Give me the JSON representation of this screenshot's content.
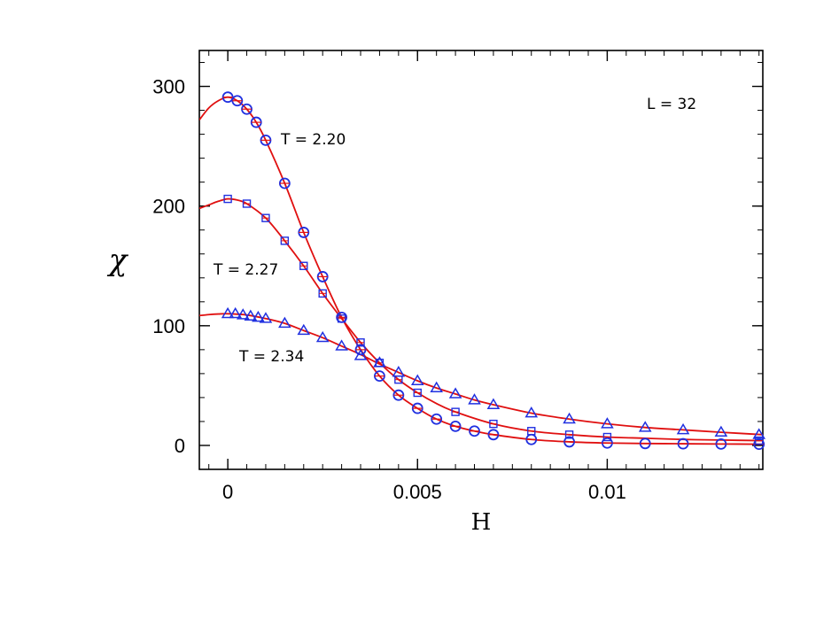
{
  "chart_data": {
    "type": "scatter",
    "xlabel": "H",
    "ylabel": "χ",
    "xlim": [
      -0.00075,
      0.0141
    ],
    "ylim": [
      -20,
      330
    ],
    "x_ticks": [
      0,
      0.005,
      0.01
    ],
    "x_tick_labels": [
      "0",
      "0.005",
      "0.01"
    ],
    "y_ticks": [
      0,
      100,
      200,
      300
    ],
    "y_tick_labels": [
      "0",
      "100",
      "200",
      "300"
    ],
    "grid": false,
    "legend": "none",
    "annotations": [
      {
        "text": "L = 32",
        "x": 0.0111,
        "y": 280
      },
      {
        "text": "T = 2.20",
        "x": 0.0014,
        "y": 252
      },
      {
        "text": "T = 2.27",
        "x": -0.0004,
        "y": 145
      },
      {
        "text": "T = 2.34",
        "x": 0.0003,
        "y": 68
      }
    ],
    "series": [
      {
        "label": "T = 2.20",
        "marker": "circle",
        "color": "#2030e0",
        "curve_color": "#e01010",
        "points": [
          [
            0,
            291
          ],
          [
            0.00025,
            288
          ],
          [
            0.0005,
            281
          ],
          [
            0.00075,
            270
          ],
          [
            0.001,
            255
          ],
          [
            0.0015,
            219
          ],
          [
            0.002,
            178
          ],
          [
            0.0025,
            141
          ],
          [
            0.003,
            107
          ],
          [
            0.0035,
            80
          ],
          [
            0.004,
            58
          ],
          [
            0.0045,
            42
          ],
          [
            0.005,
            31
          ],
          [
            0.0055,
            22
          ],
          [
            0.006,
            16
          ],
          [
            0.0065,
            12
          ],
          [
            0.007,
            9
          ],
          [
            0.008,
            5
          ],
          [
            0.009,
            3
          ],
          [
            0.01,
            2
          ],
          [
            0.011,
            1.6
          ],
          [
            0.012,
            1.4
          ],
          [
            0.013,
            1.2
          ],
          [
            0.014,
            1
          ]
        ],
        "curve": [
          [
            -0.00075,
            272
          ],
          [
            -0.0005,
            282
          ],
          [
            -0.00025,
            288
          ],
          [
            0,
            291
          ],
          [
            0.00025,
            288
          ],
          [
            0.0005,
            281
          ],
          [
            0.00075,
            270
          ],
          [
            0.001,
            255
          ],
          [
            0.0015,
            219
          ],
          [
            0.002,
            178
          ],
          [
            0.0025,
            141
          ],
          [
            0.003,
            107
          ],
          [
            0.0035,
            80
          ],
          [
            0.004,
            58
          ],
          [
            0.0045,
            42
          ],
          [
            0.005,
            31
          ],
          [
            0.0055,
            22
          ],
          [
            0.006,
            16
          ],
          [
            0.0065,
            12
          ],
          [
            0.007,
            9
          ],
          [
            0.008,
            5
          ],
          [
            0.009,
            3
          ],
          [
            0.01,
            2
          ],
          [
            0.011,
            1.6
          ],
          [
            0.012,
            1.4
          ],
          [
            0.013,
            1.2
          ],
          [
            0.0141,
            1
          ]
        ]
      },
      {
        "label": "T = 2.27",
        "marker": "square",
        "color": "#2030e0",
        "curve_color": "#e01010",
        "points": [
          [
            0,
            206
          ],
          [
            0.0005,
            202
          ],
          [
            0.001,
            190
          ],
          [
            0.0015,
            171
          ],
          [
            0.002,
            150
          ],
          [
            0.0025,
            127
          ],
          [
            0.003,
            106
          ],
          [
            0.0035,
            86
          ],
          [
            0.004,
            69
          ],
          [
            0.0045,
            55
          ],
          [
            0.005,
            44
          ],
          [
            0.006,
            28
          ],
          [
            0.007,
            18
          ],
          [
            0.008,
            12
          ],
          [
            0.009,
            9
          ],
          [
            0.01,
            7
          ],
          [
            0.014,
            4
          ]
        ],
        "curve": [
          [
            -0.00075,
            198
          ],
          [
            -0.0005,
            201
          ],
          [
            -0.00025,
            204
          ],
          [
            0,
            206
          ],
          [
            0.00025,
            205
          ],
          [
            0.0005,
            202
          ],
          [
            0.001,
            190
          ],
          [
            0.0015,
            171
          ],
          [
            0.002,
            150
          ],
          [
            0.0025,
            127
          ],
          [
            0.003,
            106
          ],
          [
            0.0035,
            86
          ],
          [
            0.004,
            69
          ],
          [
            0.0045,
            55
          ],
          [
            0.005,
            44
          ],
          [
            0.0055,
            35
          ],
          [
            0.006,
            28
          ],
          [
            0.007,
            18
          ],
          [
            0.008,
            12
          ],
          [
            0.009,
            9
          ],
          [
            0.01,
            7
          ],
          [
            0.011,
            6
          ],
          [
            0.012,
            5
          ],
          [
            0.013,
            4.5
          ],
          [
            0.0141,
            4
          ]
        ]
      },
      {
        "label": "T = 2.34",
        "marker": "triangle",
        "color": "#2030e0",
        "curve_color": "#e01010",
        "points": [
          [
            0,
            110
          ],
          [
            0.0002,
            110
          ],
          [
            0.0004,
            109
          ],
          [
            0.0006,
            108
          ],
          [
            0.0008,
            107
          ],
          [
            0.001,
            106
          ],
          [
            0.0015,
            102
          ],
          [
            0.002,
            96
          ],
          [
            0.0025,
            90
          ],
          [
            0.003,
            83
          ],
          [
            0.0035,
            75
          ],
          [
            0.004,
            69
          ],
          [
            0.0045,
            61
          ],
          [
            0.005,
            54
          ],
          [
            0.0055,
            48
          ],
          [
            0.006,
            43
          ],
          [
            0.0065,
            38
          ],
          [
            0.007,
            34
          ],
          [
            0.008,
            27
          ],
          [
            0.009,
            22
          ],
          [
            0.01,
            18
          ],
          [
            0.011,
            15
          ],
          [
            0.012,
            13
          ],
          [
            0.013,
            11
          ],
          [
            0.014,
            9
          ]
        ],
        "curve": [
          [
            -0.00075,
            108.5
          ],
          [
            -0.0005,
            109.3
          ],
          [
            -0.00025,
            109.8
          ],
          [
            0,
            110
          ],
          [
            0.0005,
            109
          ],
          [
            0.001,
            106
          ],
          [
            0.0015,
            102
          ],
          [
            0.002,
            96
          ],
          [
            0.0025,
            90
          ],
          [
            0.003,
            83
          ],
          [
            0.0035,
            76
          ],
          [
            0.004,
            68
          ],
          [
            0.0045,
            61
          ],
          [
            0.005,
            54
          ],
          [
            0.0055,
            48
          ],
          [
            0.006,
            43
          ],
          [
            0.0065,
            38
          ],
          [
            0.007,
            34
          ],
          [
            0.008,
            27
          ],
          [
            0.009,
            22
          ],
          [
            0.01,
            18
          ],
          [
            0.011,
            15
          ],
          [
            0.012,
            13
          ],
          [
            0.013,
            11
          ],
          [
            0.0141,
            9
          ]
        ]
      }
    ]
  }
}
